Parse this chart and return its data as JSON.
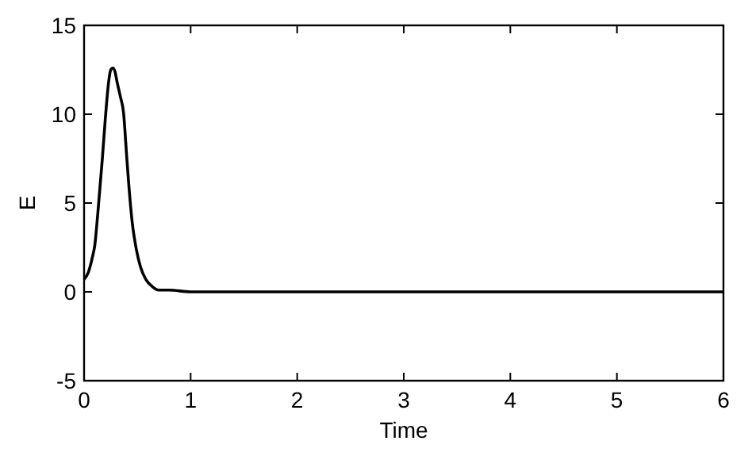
{
  "chart_data": {
    "type": "line",
    "xlabel": "Time",
    "ylabel": "E",
    "xlim": [
      0,
      6
    ],
    "ylim": [
      -5,
      15
    ],
    "xticks": [
      0,
      1,
      2,
      3,
      4,
      5,
      6
    ],
    "yticks": [
      -5,
      0,
      5,
      10,
      15
    ],
    "marker": "none",
    "line_style": "solid",
    "series": [
      {
        "color": "#000000",
        "x": [
          0,
          0.04,
          0.08,
          0.1,
          0.13,
          0.17,
          0.2,
          0.23,
          0.25,
          0.27,
          0.29,
          0.31,
          0.34,
          0.37,
          0.4,
          0.42,
          0.45,
          0.49,
          0.53,
          0.58,
          0.64,
          0.7,
          0.8,
          1,
          1.5,
          2,
          3,
          4,
          5,
          6
        ],
        "values": [
          0.7,
          1.1,
          2,
          2.6,
          4.5,
          7.4,
          9.8,
          11.8,
          12.5,
          12.6,
          12.4,
          11.8,
          11,
          10.1,
          7.6,
          6,
          4,
          2.4,
          1.4,
          0.7,
          0.3,
          0.1,
          0.1,
          0,
          0,
          0,
          0,
          0,
          0,
          0
        ]
      }
    ]
  }
}
